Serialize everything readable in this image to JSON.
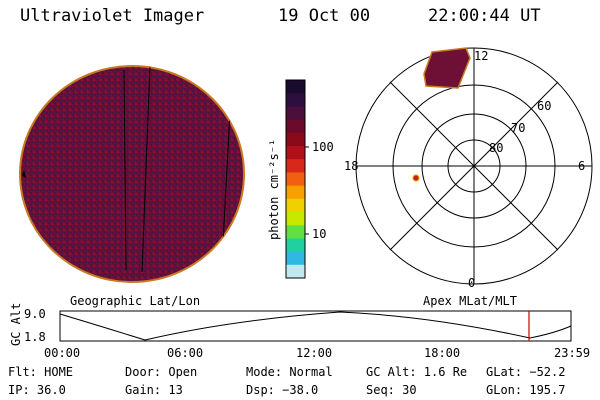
{
  "header": {
    "instrument": "Ultraviolet Imager",
    "date": "19 Oct 00",
    "time": "22:00:44 UT"
  },
  "left_panel": {
    "caption": "Geographic Lat/Lon"
  },
  "right_panel": {
    "caption": "Apex MLat/MLT",
    "mlt_labels": {
      "top": "12",
      "left": "18",
      "right": "6",
      "bottom": "0"
    },
    "lat_labels": [
      "60",
      "70",
      "80"
    ]
  },
  "colorbar": {
    "unit_label": "photon cm⁻²s⁻¹",
    "ticks": [
      "100",
      "10"
    ],
    "colors": [
      "#1a0a2e",
      "#2d0f3f",
      "#4a0f3a",
      "#6b0a2a",
      "#8a0a1a",
      "#b0101a",
      "#d8281a",
      "#f06010",
      "#f8a000",
      "#f0d000",
      "#c8e800",
      "#60e040",
      "#20d0a0",
      "#30b8e0",
      "#c0e8f0"
    ]
  },
  "altitude_plot": {
    "y_label": "GC Alt",
    "y_ticks": [
      "9.0",
      "1.8"
    ],
    "x_ticks": [
      "00:00",
      "06:00",
      "12:00",
      "18:00",
      "23:59"
    ],
    "marker_color": "#cc0000"
  },
  "info": {
    "flt": "Flt: HOME",
    "ip": "IP: 36.0",
    "door": "Door: Open",
    "gain": "Gain: 13",
    "mode": "Mode: Normal",
    "dsp": "Dsp:  −38.0",
    "gcalt": "GC Alt: 1.6 Re",
    "seq": "Seq: 30",
    "glat": "GLat: −52.2",
    "glon": "GLon: 195.7"
  }
}
